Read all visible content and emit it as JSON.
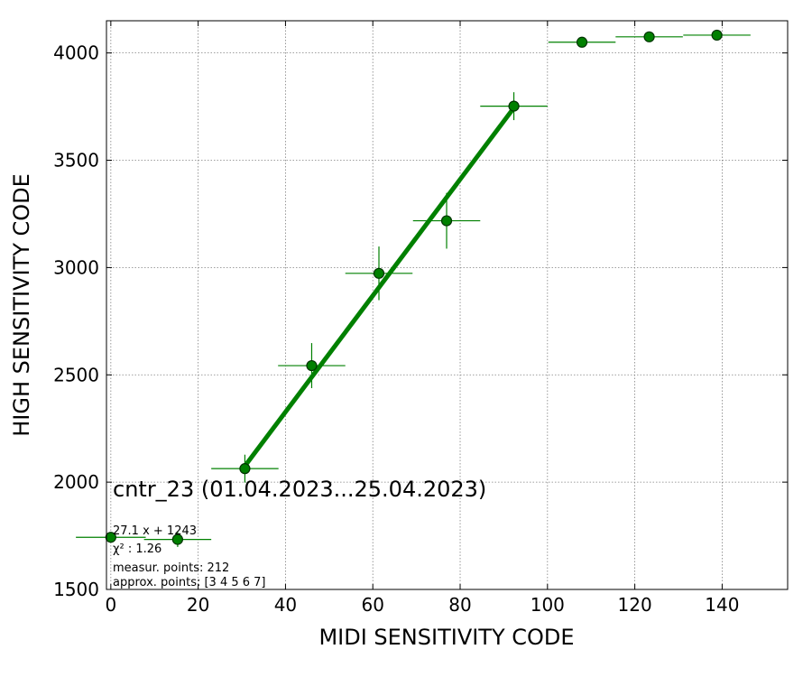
{
  "chart_data": {
    "type": "scatter",
    "xlabel": "MIDI SENSITIVITY CODE",
    "ylabel": "HIGH SENSITIVITY CODE",
    "xlim": [
      -1,
      155
    ],
    "ylim": [
      1500,
      4150
    ],
    "xticks": [
      0,
      20,
      40,
      60,
      80,
      100,
      120,
      140
    ],
    "yticks": [
      1500,
      2000,
      2500,
      3000,
      3500,
      4000
    ],
    "xtick_labels": [
      "0",
      "20",
      "40",
      "60",
      "80",
      "100",
      "120",
      "140"
    ],
    "ytick_labels": [
      "1500",
      "2000",
      "2500",
      "3000",
      "3500",
      "4000"
    ],
    "grid": true,
    "points": [
      {
        "x": 0.0,
        "y": 1743,
        "xerr": 8.0,
        "yerr": 0
      },
      {
        "x": 15.3,
        "y": 1733,
        "xerr": 7.7,
        "yerr": 35
      },
      {
        "x": 30.7,
        "y": 2063,
        "xerr": 7.7,
        "yerr": 65
      },
      {
        "x": 46.0,
        "y": 2543,
        "xerr": 7.7,
        "yerr": 105
      },
      {
        "x": 61.4,
        "y": 2973,
        "xerr": 7.7,
        "yerr": 125
      },
      {
        "x": 76.9,
        "y": 3218,
        "xerr": 7.7,
        "yerr": 130
      },
      {
        "x": 92.3,
        "y": 3752,
        "xerr": 7.7,
        "yerr": 65
      },
      {
        "x": 107.9,
        "y": 4050,
        "xerr": 7.7,
        "yerr": 10
      },
      {
        "x": 123.3,
        "y": 4075,
        "xerr": 7.7,
        "yerr": 0
      },
      {
        "x": 138.8,
        "y": 4083,
        "xerr": 7.7,
        "yerr": 0
      }
    ],
    "fit": {
      "slope": 27.1,
      "intercept": 1243,
      "x_range": [
        30.7,
        92.3
      ]
    },
    "annotations": {
      "title": "cntr_23 (01.04.2023...25.04.2023)",
      "equation": "27.1 x + 1243",
      "chi2": "χ² : 1.26",
      "measur": "measur. points: 212",
      "approx": "approx. points: [3 4 5 6 7]"
    },
    "colors": {
      "series": "#008000",
      "marker_edge": "#003300",
      "grid": "#808080"
    }
  }
}
